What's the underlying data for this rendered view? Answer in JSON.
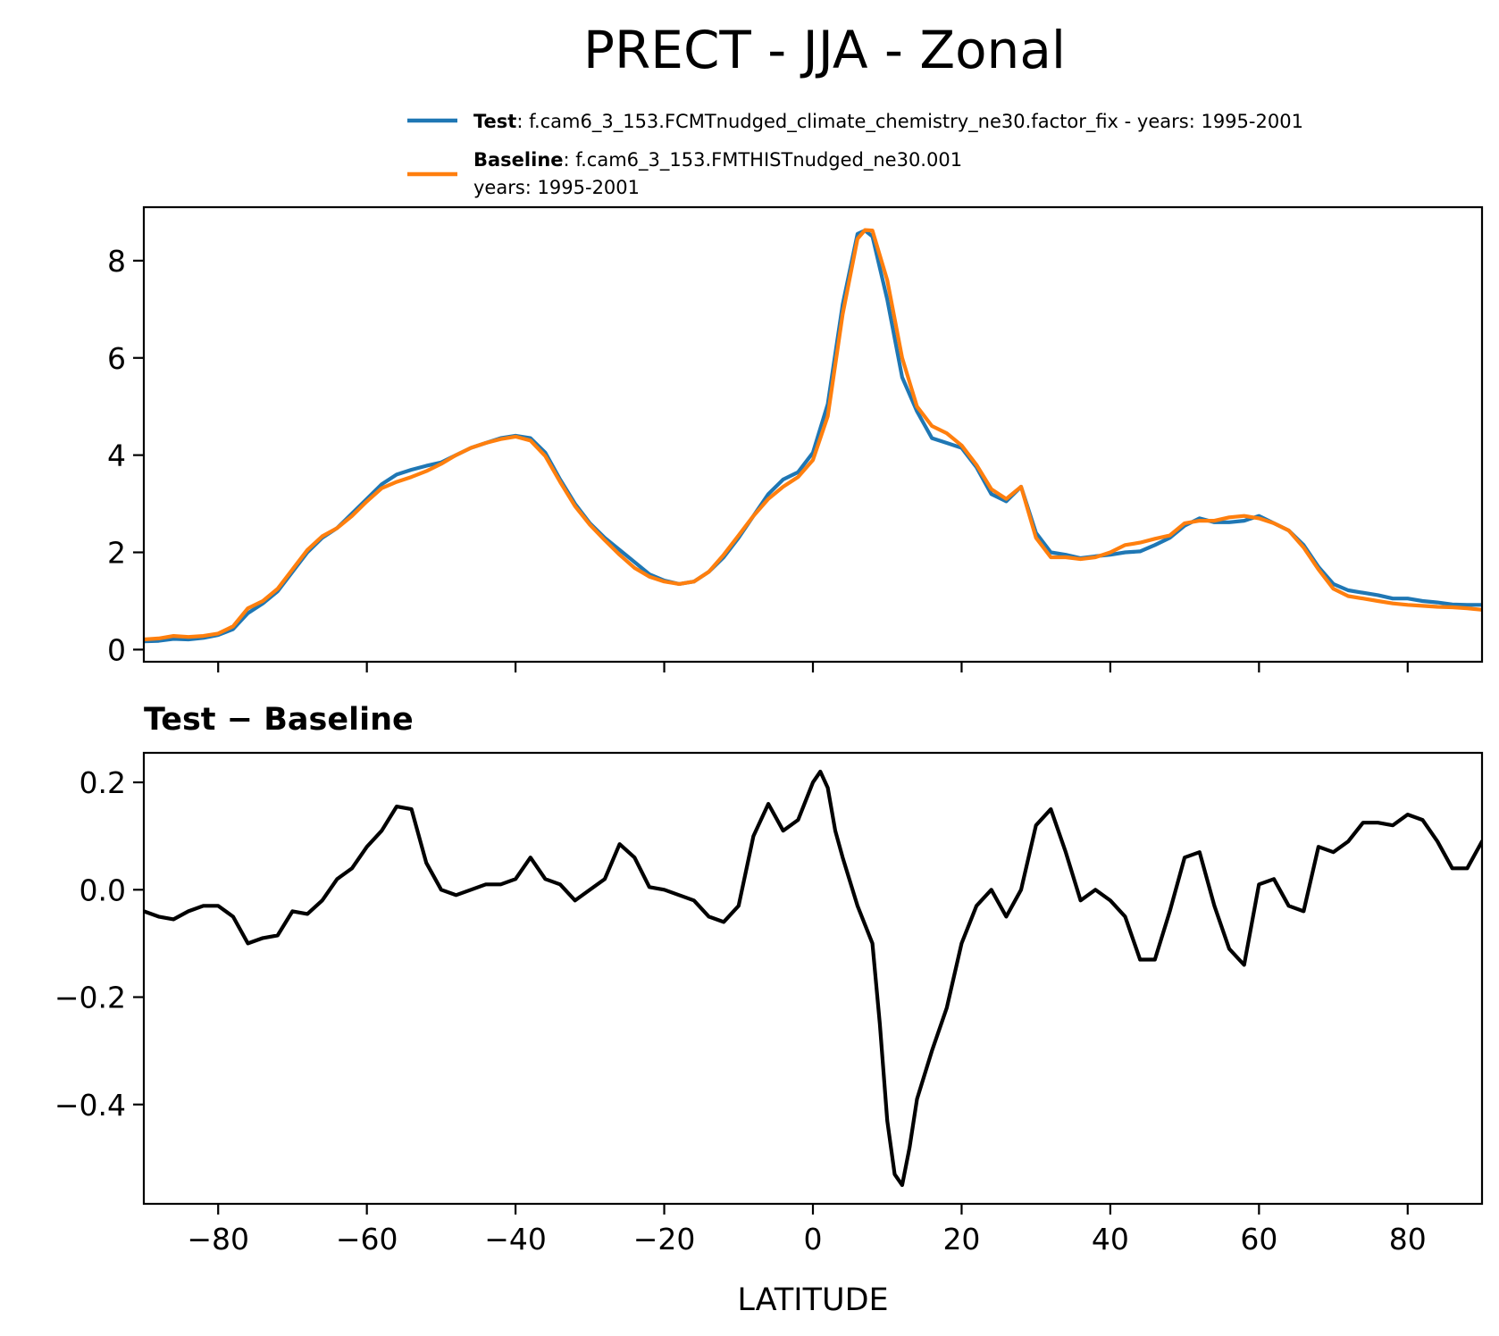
{
  "title": "PRECT - JJA - Zonal",
  "colors": {
    "test": "#1f77b4",
    "baseline": "#ff7f0e",
    "diff": "#000000"
  },
  "legend": {
    "test_label": "Test",
    "test_text": ": f.cam6_3_153.FCMTnudged_climate_chemistry_ne30.factor_fix - years: 1995-2001",
    "baseline_label": "Baseline",
    "baseline_text": ": f.cam6_3_153.FMTHISTnudged_ne30.001",
    "baseline_text2": "years: 1995-2001"
  },
  "chart_data": [
    {
      "type": "line",
      "title": "",
      "xlabel": "",
      "ylabel": "",
      "xlim": [
        -90,
        90
      ],
      "ylim": [
        -0.25,
        9.1
      ],
      "xticks": [
        -80,
        -60,
        -40,
        -20,
        0,
        20,
        40,
        60,
        80
      ],
      "yticks": [
        0,
        2,
        4,
        6,
        8
      ],
      "ytick_labels": [
        "0",
        "2",
        "4",
        "6",
        "8"
      ],
      "legend_position": "top",
      "x": [
        -90,
        -88,
        -86,
        -84,
        -82,
        -80,
        -78,
        -76,
        -74,
        -72,
        -70,
        -68,
        -66,
        -64,
        -62,
        -60,
        -58,
        -56,
        -54,
        -52,
        -50,
        -48,
        -46,
        -44,
        -42,
        -40,
        -38,
        -36,
        -34,
        -32,
        -30,
        -28,
        -26,
        -24,
        -22,
        -20,
        -18,
        -16,
        -14,
        -12,
        -10,
        -8,
        -6,
        -4,
        -2,
        0,
        2,
        4,
        6,
        7,
        8,
        10,
        12,
        14,
        16,
        18,
        20,
        22,
        24,
        26,
        28,
        30,
        32,
        34,
        36,
        38,
        40,
        42,
        44,
        46,
        48,
        50,
        52,
        54,
        56,
        58,
        60,
        62,
        64,
        66,
        68,
        70,
        72,
        74,
        76,
        78,
        80,
        82,
        84,
        86,
        88,
        90
      ],
      "series": [
        {
          "name": "Test",
          "values": [
            0.17,
            0.18,
            0.22,
            0.21,
            0.24,
            0.3,
            0.42,
            0.75,
            0.95,
            1.2,
            1.6,
            2.0,
            2.3,
            2.5,
            2.8,
            3.1,
            3.4,
            3.6,
            3.7,
            3.78,
            3.85,
            4.0,
            4.15,
            4.25,
            4.35,
            4.4,
            4.35,
            4.05,
            3.5,
            3.0,
            2.6,
            2.3,
            2.05,
            1.8,
            1.55,
            1.42,
            1.35,
            1.4,
            1.6,
            1.9,
            2.3,
            2.75,
            3.2,
            3.5,
            3.65,
            4.05,
            5.05,
            7.1,
            8.55,
            8.62,
            8.5,
            7.2,
            5.6,
            4.9,
            4.35,
            4.25,
            4.15,
            3.75,
            3.2,
            3.05,
            3.35,
            2.4,
            2.0,
            1.95,
            1.88,
            1.92,
            1.95,
            2.0,
            2.02,
            2.15,
            2.3,
            2.55,
            2.7,
            2.62,
            2.62,
            2.65,
            2.75,
            2.6,
            2.45,
            2.15,
            1.7,
            1.35,
            1.22,
            1.17,
            1.12,
            1.05,
            1.05,
            1.0,
            0.97,
            0.93,
            0.92,
            0.92
          ]
        },
        {
          "name": "Baseline",
          "values": [
            0.21,
            0.23,
            0.28,
            0.26,
            0.28,
            0.33,
            0.48,
            0.85,
            1.0,
            1.25,
            1.65,
            2.05,
            2.33,
            2.5,
            2.75,
            3.05,
            3.32,
            3.45,
            3.55,
            3.67,
            3.82,
            4.0,
            4.15,
            4.25,
            4.33,
            4.38,
            4.3,
            3.98,
            3.45,
            2.95,
            2.57,
            2.25,
            1.95,
            1.68,
            1.5,
            1.4,
            1.35,
            1.4,
            1.6,
            1.95,
            2.35,
            2.75,
            3.1,
            3.35,
            3.55,
            3.9,
            4.8,
            6.9,
            8.45,
            8.63,
            8.62,
            7.6,
            6.0,
            5.0,
            4.6,
            4.45,
            4.2,
            3.8,
            3.3,
            3.1,
            3.35,
            2.3,
            1.9,
            1.9,
            1.86,
            1.9,
            2.0,
            2.15,
            2.2,
            2.28,
            2.35,
            2.6,
            2.65,
            2.65,
            2.72,
            2.75,
            2.7,
            2.6,
            2.45,
            2.1,
            1.65,
            1.25,
            1.1,
            1.05,
            1.0,
            0.95,
            0.92,
            0.9,
            0.88,
            0.87,
            0.85,
            0.82
          ]
        }
      ]
    },
    {
      "type": "line",
      "title": "Test − Baseline",
      "xlabel": "LATITUDE",
      "ylabel": "",
      "xlim": [
        -90,
        90
      ],
      "ylim": [
        -0.585,
        0.255
      ],
      "xticks": [
        -80,
        -60,
        -40,
        -20,
        0,
        20,
        40,
        60,
        80
      ],
      "xtick_labels": [
        "−80",
        "−60",
        "−40",
        "−20",
        "0",
        "20",
        "40",
        "60",
        "80"
      ],
      "yticks": [
        0.2,
        0.0,
        -0.2,
        -0.4
      ],
      "ytick_labels": [
        "0.2",
        "0.0",
        "−0.2",
        "−0.4"
      ],
      "x": [
        -90,
        -88,
        -86,
        -84,
        -82,
        -80,
        -78,
        -76,
        -74,
        -72,
        -70,
        -68,
        -66,
        -64,
        -62,
        -60,
        -58,
        -56,
        -54,
        -52,
        -50,
        -48,
        -46,
        -44,
        -42,
        -40,
        -38,
        -36,
        -34,
        -32,
        -30,
        -28,
        -26,
        -24,
        -22,
        -20,
        -18,
        -16,
        -14,
        -12,
        -10,
        -8,
        -6,
        -4,
        -2,
        0,
        1,
        2,
        3,
        4,
        6,
        8,
        9,
        10,
        11,
        12,
        13,
        14,
        16,
        18,
        20,
        22,
        24,
        26,
        28,
        30,
        32,
        34,
        36,
        38,
        40,
        42,
        44,
        46,
        48,
        50,
        52,
        54,
        56,
        58,
        60,
        62,
        64,
        66,
        68,
        70,
        72,
        74,
        76,
        78,
        80,
        82,
        84,
        86,
        88,
        90
      ],
      "series": [
        {
          "name": "Test − Baseline",
          "values": [
            -0.04,
            -0.05,
            -0.055,
            -0.04,
            -0.03,
            -0.03,
            -0.05,
            -0.1,
            -0.09,
            -0.085,
            -0.04,
            -0.045,
            -0.02,
            0.02,
            0.04,
            0.08,
            0.11,
            0.155,
            0.15,
            0.05,
            0.0,
            -0.01,
            0.0,
            0.01,
            0.01,
            0.02,
            0.06,
            0.02,
            0.01,
            -0.02,
            0.0,
            0.02,
            0.085,
            0.06,
            0.005,
            0.0,
            -0.01,
            -0.02,
            -0.05,
            -0.06,
            -0.03,
            0.1,
            0.16,
            0.11,
            0.13,
            0.2,
            0.22,
            0.19,
            0.11,
            0.06,
            -0.03,
            -0.1,
            -0.25,
            -0.43,
            -0.53,
            -0.55,
            -0.48,
            -0.39,
            -0.3,
            -0.22,
            -0.1,
            -0.03,
            0.0,
            -0.05,
            0.0,
            0.12,
            0.15,
            0.07,
            -0.02,
            0.0,
            -0.02,
            -0.05,
            -0.13,
            -0.13,
            -0.04,
            0.06,
            0.07,
            -0.03,
            -0.11,
            -0.14,
            0.01,
            0.02,
            -0.03,
            -0.04,
            0.08,
            0.07,
            0.09,
            0.125,
            0.125,
            0.12,
            0.14,
            0.13,
            0.09,
            0.04,
            0.04,
            0.09
          ]
        }
      ]
    }
  ]
}
